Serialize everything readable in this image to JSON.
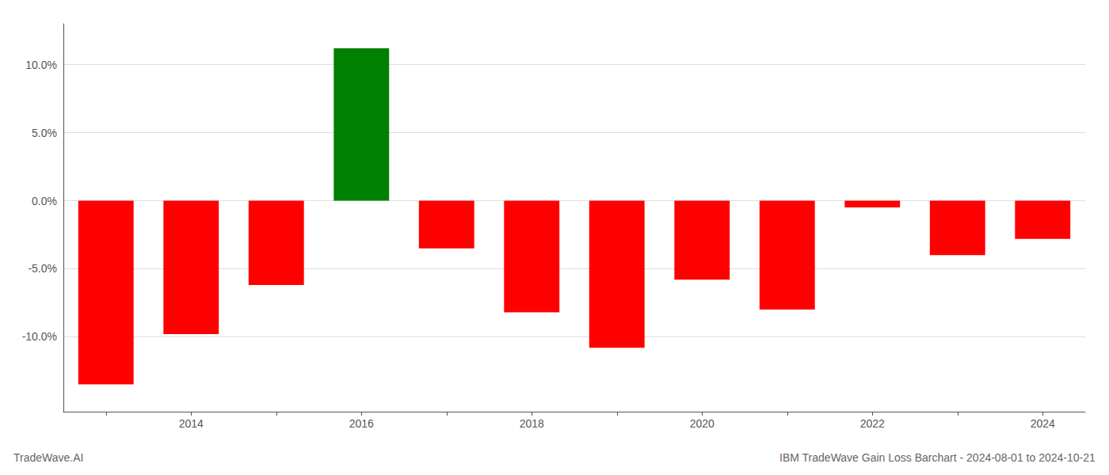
{
  "chart_data": {
    "type": "bar",
    "title": "IBM TradeWave Gain Loss Barchart - 2024-08-01 to 2024-10-21",
    "annotations": [
      "TradeWave.AI"
    ],
    "categories": [
      null,
      "2014",
      null,
      "2016",
      null,
      "2018",
      null,
      "2020",
      null,
      "2022",
      null,
      "2024"
    ],
    "values": [
      -13.5,
      -9.8,
      -6.2,
      11.2,
      -3.5,
      -8.2,
      -10.8,
      -5.8,
      -8.0,
      -0.5,
      -4.0,
      -2.8
    ],
    "colors": [
      "#ff0000",
      "#ff0000",
      "#ff0000",
      "#008000",
      "#ff0000",
      "#ff0000",
      "#ff0000",
      "#ff0000",
      "#ff0000",
      "#ff0000",
      "#ff0000",
      "#ff0000"
    ],
    "ylim": [
      -15.5,
      13.0
    ],
    "yticks": [
      {
        "value": -10.0,
        "label": "-10.0%"
      },
      {
        "value": -5.0,
        "label": "-5.0%"
      },
      {
        "value": 0.0,
        "label": "0.0%"
      },
      {
        "value": 5.0,
        "label": "5.0%"
      },
      {
        "value": 10.0,
        "label": "10.0%"
      }
    ],
    "grid": true
  }
}
